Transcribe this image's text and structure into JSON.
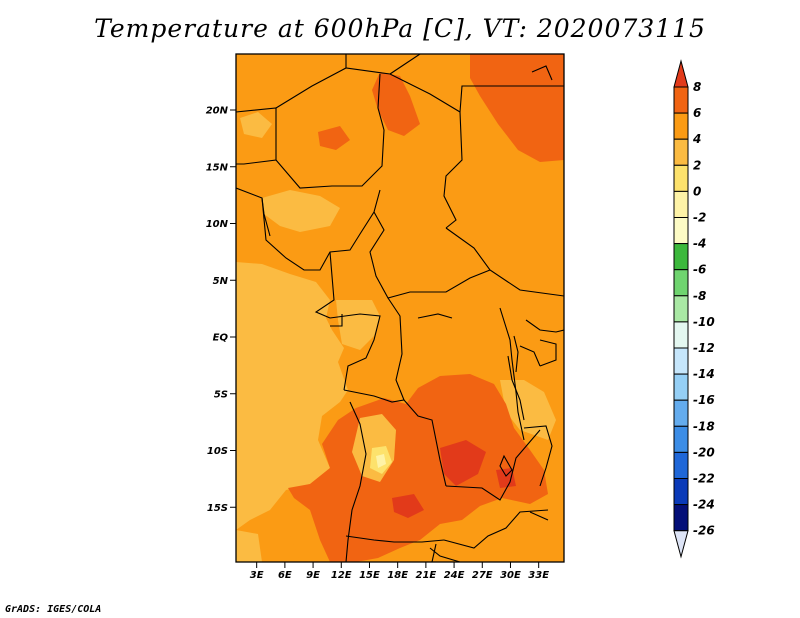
{
  "title": "Temperature at 600hPa [C], VT: 2020073115",
  "footer": "GrADS: IGES/COLA",
  "map": {
    "lat_ticks": [
      {
        "lat": 20,
        "label": "20N"
      },
      {
        "lat": 15,
        "label": "15N"
      },
      {
        "lat": 10,
        "label": "10N"
      },
      {
        "lat": 5,
        "label": "5N"
      },
      {
        "lat": 0,
        "label": "EQ"
      },
      {
        "lat": -5,
        "label": "5S"
      },
      {
        "lat": -10,
        "label": "10S"
      },
      {
        "lat": -15,
        "label": "15S"
      }
    ],
    "lon_ticks": [
      {
        "lon": 3,
        "label": "3E"
      },
      {
        "lon": 6,
        "label": "6E"
      },
      {
        "lon": 9,
        "label": "9E"
      },
      {
        "lon": 12,
        "label": "12E"
      },
      {
        "lon": 15,
        "label": "15E"
      },
      {
        "lon": 18,
        "label": "18E"
      },
      {
        "lon": 21,
        "label": "21E"
      },
      {
        "lon": 24,
        "label": "24E"
      },
      {
        "lon": 27,
        "label": "27E"
      },
      {
        "lon": 30,
        "label": "30E"
      },
      {
        "lon": 33,
        "label": "33E"
      }
    ]
  },
  "colorbar": {
    "labels": [
      "8",
      "6",
      "4",
      "2",
      "0",
      "-2",
      "-4",
      "-6",
      "-8",
      "-10",
      "-12",
      "-14",
      "-16",
      "-18",
      "-20",
      "-22",
      "-24",
      "-26"
    ],
    "colors": [
      "#e23a1a",
      "#f16412",
      "#fb9b14",
      "#fbbb42",
      "#fde26c",
      "#fef3a7",
      "#fdfbc5",
      "#3cb83c",
      "#6fd46f",
      "#a9e8a4",
      "#e4f7f0",
      "#c6e6fb",
      "#95cff5",
      "#64acee",
      "#3c8de6",
      "#1f67d8",
      "#0a3ab8",
      "#040f78",
      "#dde4f6"
    ]
  }
}
